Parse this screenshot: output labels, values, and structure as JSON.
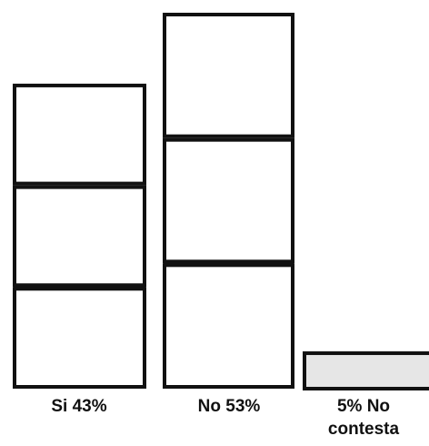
{
  "chart_data": {
    "type": "bar",
    "categories": [
      "Si",
      "No",
      "No contesta"
    ],
    "values": [
      43,
      53,
      5
    ],
    "labels": [
      [
        "Si  43%"
      ],
      [
        "No  53%"
      ],
      [
        "5% No",
        "contesta"
      ]
    ],
    "ylim": [
      0,
      53
    ],
    "grid": false,
    "legend": "none",
    "colors": {
      "stroke": "#111111",
      "fill": "#ffffff",
      "small_fill": "#e6e6e6"
    }
  }
}
